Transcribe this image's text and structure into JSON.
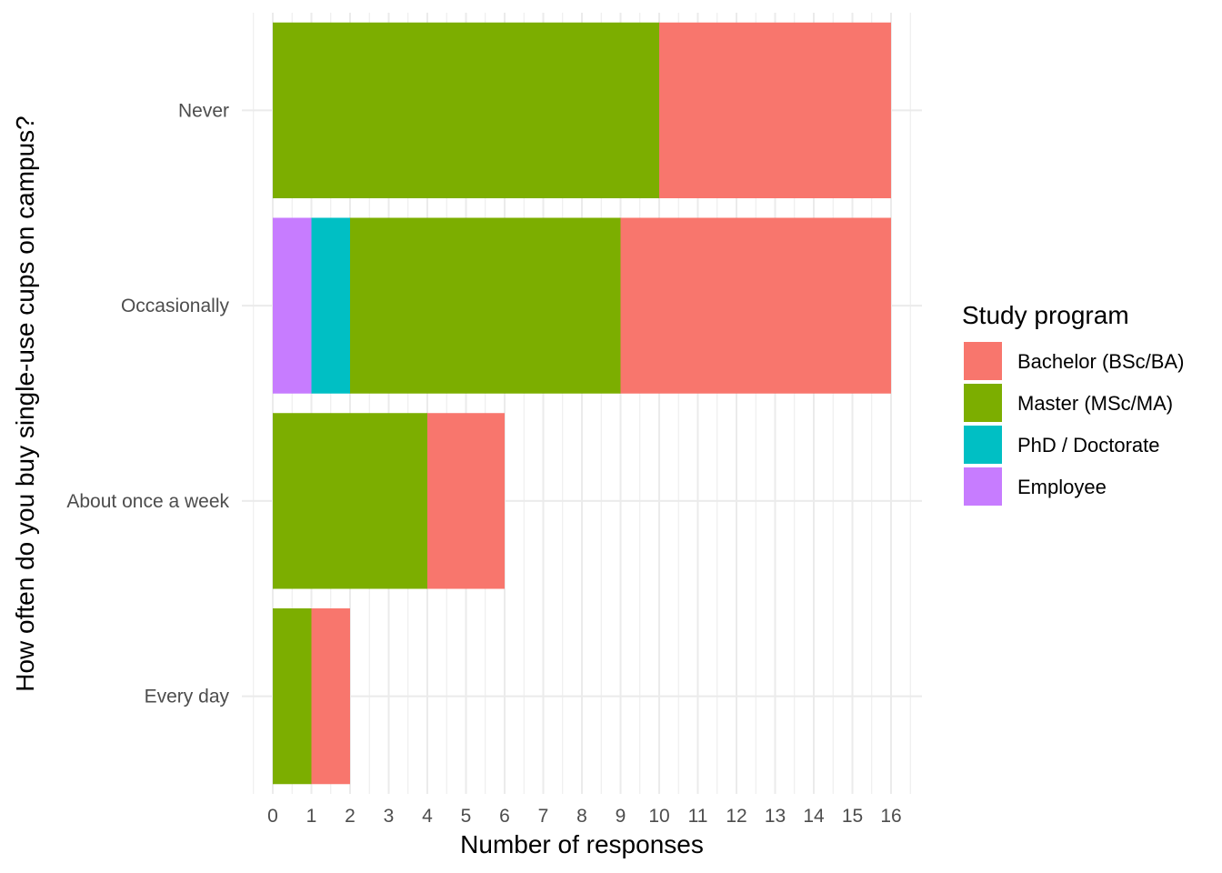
{
  "chart_data": {
    "type": "bar",
    "orientation": "horizontal",
    "stacked": true,
    "xlabel": "Number of responses",
    "ylabel": "How often do you buy single-use cups on campus?",
    "xlim": [
      0,
      16
    ],
    "x_ticks": [
      "0",
      "1",
      "2",
      "3",
      "4",
      "5",
      "6",
      "7",
      "8",
      "9",
      "10",
      "11",
      "12",
      "13",
      "14",
      "15",
      "16"
    ],
    "categories": [
      "Never",
      "Occasionally",
      "About once a week",
      "Every day"
    ],
    "stack_order": [
      "Employee",
      "PhD / Doctorate",
      "Master (MSc/MA)",
      "Bachelor (BSc/BA)"
    ],
    "series": [
      {
        "name": "Bachelor (BSc/BA)",
        "color": "#F8766D",
        "values": [
          6,
          7,
          2,
          1
        ]
      },
      {
        "name": "Master (MSc/MA)",
        "color": "#7CAE00",
        "values": [
          10,
          7,
          4,
          1
        ]
      },
      {
        "name": "PhD / Doctorate",
        "color": "#00BFC4",
        "values": [
          0,
          1,
          0,
          0
        ]
      },
      {
        "name": "Employee",
        "color": "#C77CFF",
        "values": [
          0,
          1,
          0,
          0
        ]
      }
    ],
    "legend": {
      "title": "Study program",
      "placement": "right",
      "entries": [
        "Bachelor (BSc/BA)",
        "Master (MSc/MA)",
        "PhD / Doctorate",
        "Employee"
      ]
    },
    "grid": true
  }
}
